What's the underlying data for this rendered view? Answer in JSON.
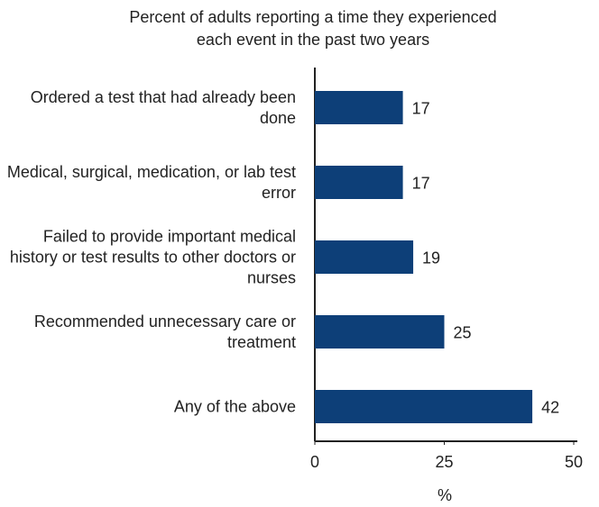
{
  "chart_data": {
    "type": "bar",
    "orientation": "horizontal",
    "title": [
      "Percent of adults reporting a time they experienced",
      "each event in the past two years"
    ],
    "categories": [
      "Ordered a test that had already been done",
      "Medical, surgical, medication, or lab test error",
      "Failed to provide important medical history or test results to other doctors or nurses",
      "Recommended unnecessary care or treatment",
      "Any of the above"
    ],
    "values": [
      17,
      17,
      19,
      25,
      42
    ],
    "color": "#0d3f78",
    "xlim": [
      0,
      50
    ],
    "xticks": [
      0,
      25,
      50
    ],
    "xlabel": "%"
  }
}
